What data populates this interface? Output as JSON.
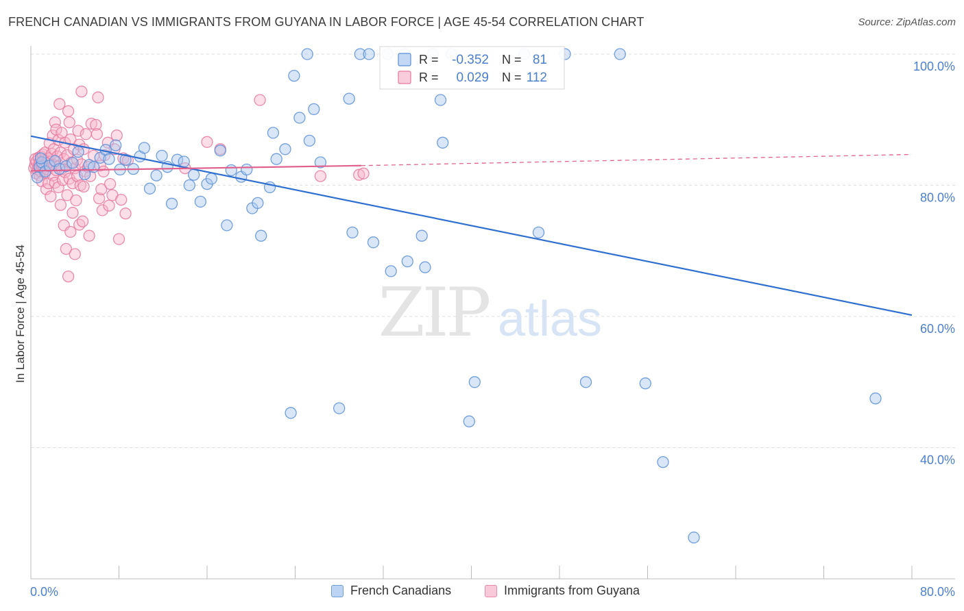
{
  "header": {
    "title": "FRENCH CANADIAN VS IMMIGRANTS FROM GUYANA IN LABOR FORCE | AGE 45-54 CORRELATION CHART",
    "source": "Source: ZipAtlas.com"
  },
  "watermark": {
    "zip": "ZIP",
    "atlas": "atlas"
  },
  "colors": {
    "blue_fill": "#a9c8f0",
    "blue_stroke": "#5a8fd6",
    "blue_line": "#2f6fd0",
    "pink_fill": "#f7b6cc",
    "pink_stroke": "#e8789e",
    "pink_line": "#e0608e",
    "tick_label": "#4a7fd0",
    "grid": "#dddddd"
  },
  "stats_legend": [
    {
      "r_label": "R =",
      "r_value": "-0.352",
      "n_label": "N =",
      "n_value": "81"
    },
    {
      "r_label": "R =",
      "r_value": "0.029",
      "n_label": "N =",
      "n_value": "112"
    }
  ],
  "chart_data": {
    "type": "scatter",
    "title": "FRENCH CANADIAN VS IMMIGRANTS FROM GUYANA IN LABOR FORCE | AGE 45-54 CORRELATION CHART",
    "xlabel": "",
    "ylabel": "In Labor Force | Age 45-54",
    "xlim": [
      0,
      80
    ],
    "ylim": [
      20,
      102
    ],
    "x_tick_labels": [
      "0.0%",
      "80.0%"
    ],
    "y_tick_values": [
      40,
      60,
      80,
      100
    ],
    "y_tick_labels": [
      "40.0%",
      "60.0%",
      "80.0%",
      "100.0%"
    ],
    "grid": true,
    "legend_position": "top-center",
    "series": [
      {
        "name": "French Canadians",
        "color": "#a9c8f0",
        "trend": {
          "x": [
            0,
            80
          ],
          "y": [
            87.5,
            60.2
          ]
        },
        "points": [
          [
            0.6,
            81.2
          ],
          [
            0.8,
            82.8
          ],
          [
            1.0,
            83.5
          ],
          [
            1.3,
            82.1
          ],
          [
            1.7,
            83.0
          ],
          [
            2.2,
            83.7
          ],
          [
            2.6,
            82.5
          ],
          [
            3.2,
            82.9
          ],
          [
            3.8,
            83.4
          ],
          [
            4.3,
            85.1
          ],
          [
            4.9,
            81.7
          ],
          [
            5.3,
            83.1
          ],
          [
            5.7,
            82.8
          ],
          [
            6.3,
            84.2
          ],
          [
            6.8,
            85.4
          ],
          [
            7.1,
            84.0
          ],
          [
            7.7,
            86.1
          ],
          [
            8.1,
            82.4
          ],
          [
            8.6,
            83.9
          ],
          [
            9.3,
            82.5
          ],
          [
            9.9,
            84.4
          ],
          [
            10.3,
            85.7
          ],
          [
            10.8,
            79.5
          ],
          [
            11.4,
            81.5
          ],
          [
            11.9,
            84.5
          ],
          [
            12.4,
            82.8
          ],
          [
            12.8,
            77.2
          ],
          [
            13.3,
            83.9
          ],
          [
            13.9,
            83.6
          ],
          [
            14.4,
            80.0
          ],
          [
            14.8,
            81.6
          ],
          [
            15.4,
            77.5
          ],
          [
            16.0,
            80.2
          ],
          [
            16.4,
            81.0
          ],
          [
            17.2,
            85.3
          ],
          [
            17.8,
            73.9
          ],
          [
            18.2,
            82.3
          ],
          [
            19.1,
            81.3
          ],
          [
            19.6,
            82.4
          ],
          [
            20.1,
            76.5
          ],
          [
            20.6,
            77.3
          ],
          [
            20.9,
            72.3
          ],
          [
            21.7,
            79.7
          ],
          [
            22.0,
            88.0
          ],
          [
            22.3,
            84.0
          ],
          [
            23.1,
            85.5
          ],
          [
            23.6,
            45.3
          ],
          [
            23.9,
            96.7
          ],
          [
            24.4,
            90.3
          ],
          [
            25.1,
            100.0
          ],
          [
            25.3,
            86.8
          ],
          [
            25.7,
            91.6
          ],
          [
            26.3,
            83.5
          ],
          [
            28.0,
            46.0
          ],
          [
            28.9,
            93.2
          ],
          [
            29.2,
            72.8
          ],
          [
            29.9,
            100.0
          ],
          [
            30.7,
            100.0
          ],
          [
            31.1,
            71.3
          ],
          [
            32.4,
            100.0
          ],
          [
            32.7,
            66.9
          ],
          [
            33.9,
            100.0
          ],
          [
            34.2,
            68.4
          ],
          [
            35.5,
            72.3
          ],
          [
            35.8,
            67.5
          ],
          [
            36.5,
            100.0
          ],
          [
            37.2,
            93.0
          ],
          [
            37.4,
            86.5
          ],
          [
            38.2,
            100.0
          ],
          [
            39.8,
            44.0
          ],
          [
            40.3,
            50.0
          ],
          [
            44.8,
            100.0
          ],
          [
            46.1,
            72.8
          ],
          [
            48.5,
            100.0
          ],
          [
            50.4,
            50.0
          ],
          [
            53.5,
            100.0
          ],
          [
            55.8,
            49.8
          ],
          [
            57.4,
            37.8
          ],
          [
            60.2,
            26.3
          ],
          [
            76.7,
            47.5
          ],
          [
            0.9,
            84.1
          ]
        ]
      },
      {
        "name": "Immigrants from Guyana",
        "color": "#f7b6cc",
        "trend": {
          "x": [
            0,
            30
          ],
          "y": [
            82.2,
            83.0
          ],
          "dashed_to": {
            "x": 80,
            "y": 84.7
          }
        },
        "points": [
          [
            0.3,
            82.6
          ],
          [
            0.4,
            83.2
          ],
          [
            0.4,
            84.0
          ],
          [
            0.5,
            81.8
          ],
          [
            0.5,
            83.6
          ],
          [
            0.6,
            82.4
          ],
          [
            0.7,
            84.2
          ],
          [
            0.7,
            82.9
          ],
          [
            0.8,
            83.5
          ],
          [
            0.8,
            81.5
          ],
          [
            0.9,
            84.4
          ],
          [
            0.9,
            82.1
          ],
          [
            1.0,
            83.0
          ],
          [
            1.0,
            80.6
          ],
          [
            1.1,
            84.7
          ],
          [
            1.2,
            82.7
          ],
          [
            1.2,
            83.9
          ],
          [
            1.3,
            81.9
          ],
          [
            1.3,
            85.0
          ],
          [
            1.4,
            79.4
          ],
          [
            1.4,
            83.3
          ],
          [
            1.5,
            82.4
          ],
          [
            1.6,
            84.1
          ],
          [
            1.6,
            80.3
          ],
          [
            1.7,
            86.4
          ],
          [
            1.7,
            82.9
          ],
          [
            1.8,
            83.6
          ],
          [
            1.8,
            78.3
          ],
          [
            1.9,
            84.8
          ],
          [
            2.0,
            81.5
          ],
          [
            2.0,
            87.6
          ],
          [
            2.1,
            83.1
          ],
          [
            2.1,
            85.5
          ],
          [
            2.2,
            80.4
          ],
          [
            2.2,
            89.6
          ],
          [
            2.3,
            82.3
          ],
          [
            2.3,
            88.5
          ],
          [
            2.4,
            84.4
          ],
          [
            2.5,
            79.7
          ],
          [
            2.5,
            86.9
          ],
          [
            2.6,
            83.0
          ],
          [
            2.6,
            92.4
          ],
          [
            2.7,
            77.0
          ],
          [
            2.7,
            85.0
          ],
          [
            2.8,
            82.5
          ],
          [
            2.8,
            88.0
          ],
          [
            2.9,
            80.8
          ],
          [
            3.0,
            84.0
          ],
          [
            3.0,
            73.9
          ],
          [
            3.1,
            86.5
          ],
          [
            3.1,
            82.0
          ],
          [
            3.2,
            70.3
          ],
          [
            3.3,
            84.6
          ],
          [
            3.3,
            78.5
          ],
          [
            3.4,
            66.1
          ],
          [
            3.4,
            91.3
          ],
          [
            3.5,
            89.6
          ],
          [
            3.5,
            81.0
          ],
          [
            3.6,
            72.9
          ],
          [
            3.6,
            87.0
          ],
          [
            3.7,
            83.5
          ],
          [
            3.8,
            75.8
          ],
          [
            3.8,
            80.3
          ],
          [
            3.9,
            85.5
          ],
          [
            4.0,
            69.5
          ],
          [
            4.0,
            82.6
          ],
          [
            4.1,
            77.7
          ],
          [
            4.2,
            83.9
          ],
          [
            4.2,
            81.4
          ],
          [
            4.3,
            88.3
          ],
          [
            4.4,
            74.0
          ],
          [
            4.4,
            86.2
          ],
          [
            4.5,
            80.0
          ],
          [
            4.6,
            94.3
          ],
          [
            4.6,
            83.2
          ],
          [
            4.7,
            74.5
          ],
          [
            4.8,
            85.5
          ],
          [
            4.8,
            79.8
          ],
          [
            4.9,
            82.1
          ],
          [
            5.0,
            87.8
          ],
          [
            5.2,
            82.8
          ],
          [
            5.3,
            72.3
          ],
          [
            5.4,
            81.4
          ],
          [
            5.5,
            89.4
          ],
          [
            5.7,
            84.5
          ],
          [
            5.9,
            89.2
          ],
          [
            6.0,
            87.8
          ],
          [
            6.1,
            93.4
          ],
          [
            6.2,
            78.0
          ],
          [
            6.3,
            83.0
          ],
          [
            6.4,
            79.4
          ],
          [
            6.5,
            76.2
          ],
          [
            6.6,
            82.1
          ],
          [
            6.7,
            84.6
          ],
          [
            7.0,
            86.5
          ],
          [
            7.1,
            76.9
          ],
          [
            7.2,
            80.2
          ],
          [
            7.4,
            78.5
          ],
          [
            7.6,
            85.5
          ],
          [
            7.8,
            87.6
          ],
          [
            8.0,
            71.8
          ],
          [
            8.2,
            77.8
          ],
          [
            8.4,
            84.1
          ],
          [
            8.6,
            75.7
          ],
          [
            8.8,
            83.8
          ],
          [
            14.0,
            82.6
          ],
          [
            16.0,
            86.6
          ],
          [
            17.2,
            85.5
          ],
          [
            20.8,
            93.0
          ],
          [
            26.3,
            81.4
          ],
          [
            29.8,
            81.6
          ],
          [
            30.2,
            81.8
          ]
        ]
      }
    ]
  },
  "bottom_legend": [
    {
      "label": "French Canadians"
    },
    {
      "label": "Immigrants from Guyana"
    }
  ]
}
